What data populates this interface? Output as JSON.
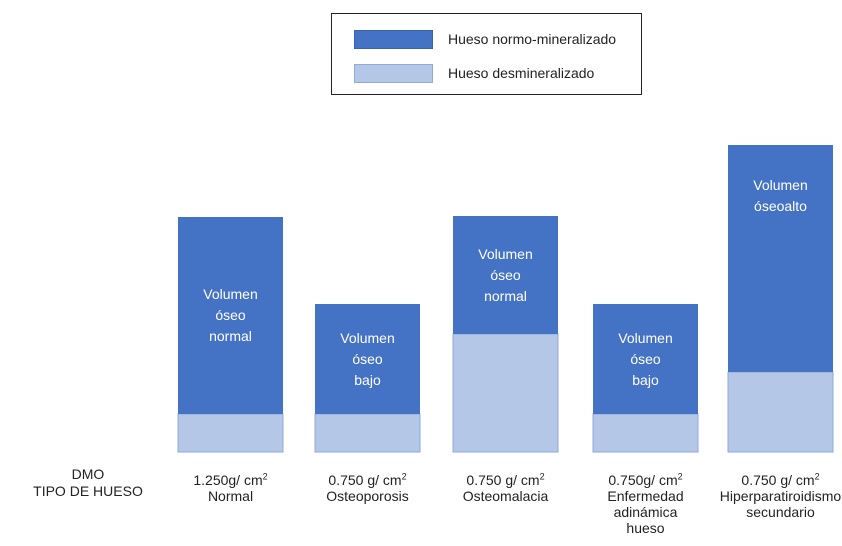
{
  "legend": {
    "items": [
      {
        "label": "Hueso normo-mineralizado",
        "color": "#4472c4",
        "border": "#3a62b0"
      },
      {
        "label": "Hueso desmineralizado",
        "color": "#b4c7e7",
        "border": "#8faadc"
      }
    ]
  },
  "row_labels": {
    "dmo": "DMO",
    "tipo": "TIPO DE HUESO"
  },
  "colors": {
    "normo": "#4472c4",
    "desmin": "#b4c7e7",
    "desmin_border": "#8faadc"
  },
  "chart_data": {
    "type": "bar",
    "stacked": true,
    "categories": [
      "Normal",
      "Osteoporosis",
      "Osteomalacia",
      "Enfermedad adinámica hueso",
      "Hiperparatiroidismo secundario"
    ],
    "dmo_values": [
      "1.250g/ cm",
      "0.750 g/ cm",
      "0.750 g/ cm",
      "0.750g/ cm",
      "0.750 g/ cm"
    ],
    "dmo_unit_sup": "2",
    "category_lines": [
      [
        "Normal"
      ],
      [
        "Osteoporosis"
      ],
      [
        "Osteomalacia"
      ],
      [
        "Enfermedad",
        "adinámica",
        "hueso"
      ],
      [
        "Hiperparatiroidismo",
        "secundario"
      ]
    ],
    "bar_text": [
      [
        "Volumen",
        "óseo",
        "normal"
      ],
      [
        "Volumen",
        "óseo",
        "bajo"
      ],
      [
        "Volumen",
        "óseo",
        "normal"
      ],
      [
        "Volumen",
        "óseo",
        "bajo"
      ],
      [
        "Volumen",
        "óseoalto"
      ]
    ],
    "series": [
      {
        "name": "Hueso desmineralizado",
        "values": [
          38,
          38,
          118,
          38,
          80
        ]
      },
      {
        "name": "Hueso normo-mineralizado",
        "values": [
          197,
          110,
          118,
          110,
          227
        ]
      }
    ],
    "ylim": [
      0,
      310
    ]
  }
}
